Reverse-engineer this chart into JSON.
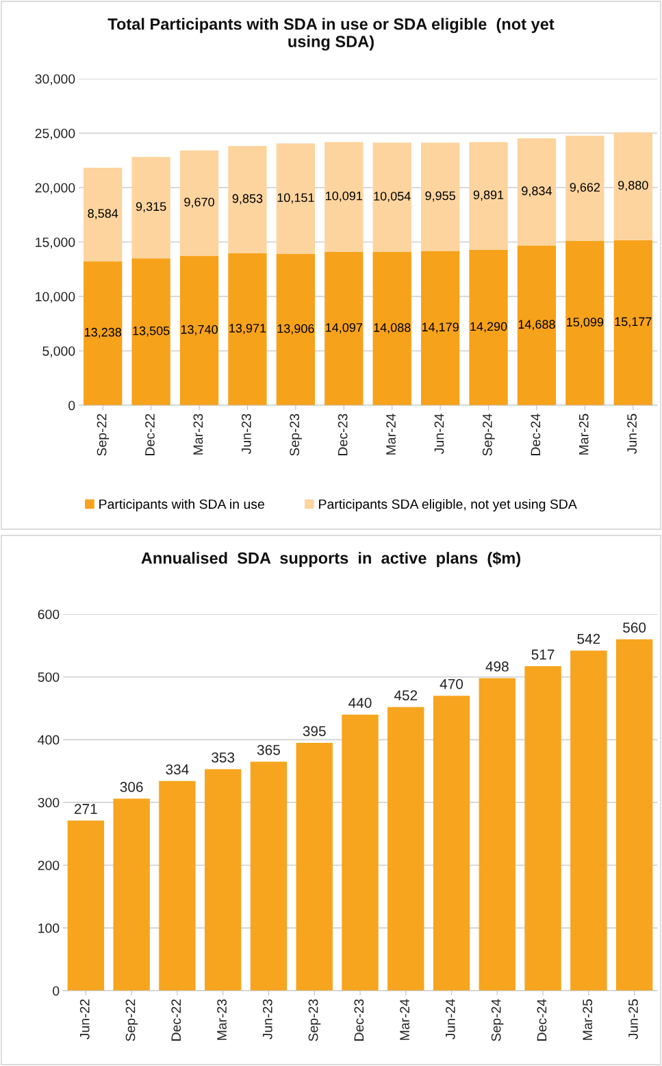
{
  "chart_data": [
    {
      "type": "bar",
      "title": "Total Participants with SDA in use or SDA eligible  (not yet\nusing SDA)",
      "stacked": true,
      "categories": [
        "Sep-22",
        "Dec-22",
        "Mar-23",
        "Jun-23",
        "Sep-23",
        "Dec-23",
        "Mar-24",
        "Jun-24",
        "Sep-24",
        "Dec-24",
        "Mar-25",
        "Jun-25"
      ],
      "series": [
        {
          "name": "Participants with SDA in use",
          "color": "#f7a21b",
          "values": [
            13238,
            13505,
            13740,
            13971,
            13906,
            14097,
            14088,
            14179,
            14290,
            14688,
            15099,
            15177
          ],
          "value_labels": [
            "13,238",
            "13,505",
            "13,740",
            "13,971",
            "13,906",
            "14,097",
            "14,088",
            "14,179",
            "14,290",
            "14,688",
            "15,099",
            "15,177"
          ]
        },
        {
          "name": "Participants SDA eligible, not yet using SDA",
          "color": "#fdd49e",
          "values": [
            8584,
            9315,
            9670,
            9853,
            10151,
            10091,
            10054,
            9955,
            9891,
            9834,
            9662,
            9880
          ],
          "value_labels": [
            "8,584",
            "9,315",
            "9,670",
            "9,853",
            "10,151",
            "10,091",
            "10,054",
            "9,955",
            "9,891",
            "9,834",
            "9,662",
            "9,880"
          ]
        }
      ],
      "ylim": [
        0,
        30000
      ],
      "yticks": [
        {
          "value": 0,
          "label": "0"
        },
        {
          "value": 5000,
          "label": "5,000"
        },
        {
          "value": 10000,
          "label": "10,000"
        },
        {
          "value": 15000,
          "label": "15,000"
        },
        {
          "value": 20000,
          "label": "20,000"
        },
        {
          "value": 25000,
          "label": "25,000"
        },
        {
          "value": 30000,
          "label": "30,000"
        }
      ],
      "grid": "y",
      "legend": "bottom"
    },
    {
      "type": "bar",
      "title": "Annualised  SDA  supports  in  active  plans  ($m)",
      "categories": [
        "Jun-22",
        "Sep-22",
        "Dec-22",
        "Mar-23",
        "Jun-23",
        "Sep-23",
        "Dec-23",
        "Mar-24",
        "Jun-24",
        "Sep-24",
        "Dec-24",
        "Mar-25",
        "Jun-25"
      ],
      "series": [
        {
          "color": "#f7a51e",
          "values": [
            271,
            306,
            334,
            353,
            365,
            395,
            440,
            452,
            470,
            498,
            517,
            542,
            560
          ]
        }
      ],
      "ylim": [
        0,
        600
      ],
      "yticks": [
        0,
        100,
        200,
        300,
        400,
        500,
        600
      ],
      "grid": "y",
      "data_labels": true
    }
  ]
}
